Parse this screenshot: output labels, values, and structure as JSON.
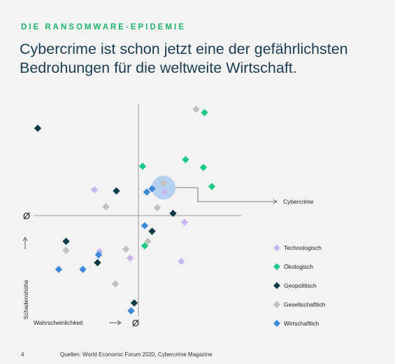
{
  "header": {
    "kicker": "DIE RANSOMWARE-EPIDEMIE",
    "title_line1": "Cybercrime ist schon jetzt eine der gefährlichsten",
    "title_line2": "Bedrohungen für die weltweite Wirtschaft."
  },
  "footer": {
    "page_number": "4",
    "source": "Quellen: World Economic Forum 2020,  Cybercrime Magazine"
  },
  "chart_data": {
    "type": "scatter",
    "xlabel": "Wahrscheinlichkeit",
    "ylabel": "Schadenshöhe",
    "origin_label_x": "Ø",
    "origin_label_y": "Ø",
    "xlim": [
      -10,
      10
    ],
    "ylim": [
      -10,
      10
    ],
    "legend_position": "right",
    "annotation": {
      "label": "Cybercrime",
      "x": 2.4,
      "y": 2.5
    },
    "series": [
      {
        "name": "Technologisch",
        "color": "#c8b8ee",
        "points": [
          [
            -4.2,
            2.3
          ],
          [
            2.5,
            2.1
          ],
          [
            4.4,
            -0.6
          ],
          [
            -3.7,
            -3.2
          ],
          [
            -0.8,
            -3.8
          ],
          [
            4.1,
            -4.1
          ]
        ]
      },
      {
        "name": "Ökologisch",
        "color": "#1ec885",
        "points": [
          [
            6.3,
            9.2
          ],
          [
            0.4,
            4.4
          ],
          [
            4.5,
            5.0
          ],
          [
            6.2,
            4.3
          ],
          [
            7.0,
            2.6
          ],
          [
            0.6,
            -2.7
          ]
        ]
      },
      {
        "name": "Geopolitisch",
        "color": "#0d3a47",
        "points": [
          [
            -9.6,
            7.8
          ],
          [
            -2.1,
            2.2
          ],
          [
            3.3,
            0.2
          ],
          [
            1.3,
            -1.4
          ],
          [
            -6.9,
            -2.3
          ],
          [
            -3.9,
            -4.2
          ],
          [
            -0.4,
            -7.8
          ]
        ]
      },
      {
        "name": "Gesellschaftlich",
        "color": "#c0c0c0",
        "points": [
          [
            5.5,
            9.5
          ],
          [
            2.4,
            2.9
          ],
          [
            -3.1,
            0.8
          ],
          [
            1.8,
            0.7
          ],
          [
            0.9,
            -2.3
          ],
          [
            -1.2,
            -3.0
          ],
          [
            -6.9,
            -3.1
          ],
          [
            -2.2,
            -6.1
          ]
        ]
      },
      {
        "name": "Wirtschaftlich",
        "color": "#3d88d8",
        "points": [
          [
            0.8,
            2.1
          ],
          [
            1.3,
            2.4
          ],
          [
            0.6,
            -0.9
          ],
          [
            -3.8,
            -3.5
          ],
          [
            -7.6,
            -4.8
          ],
          [
            -5.3,
            -4.8
          ],
          [
            -0.7,
            -8.5
          ]
        ]
      }
    ]
  }
}
